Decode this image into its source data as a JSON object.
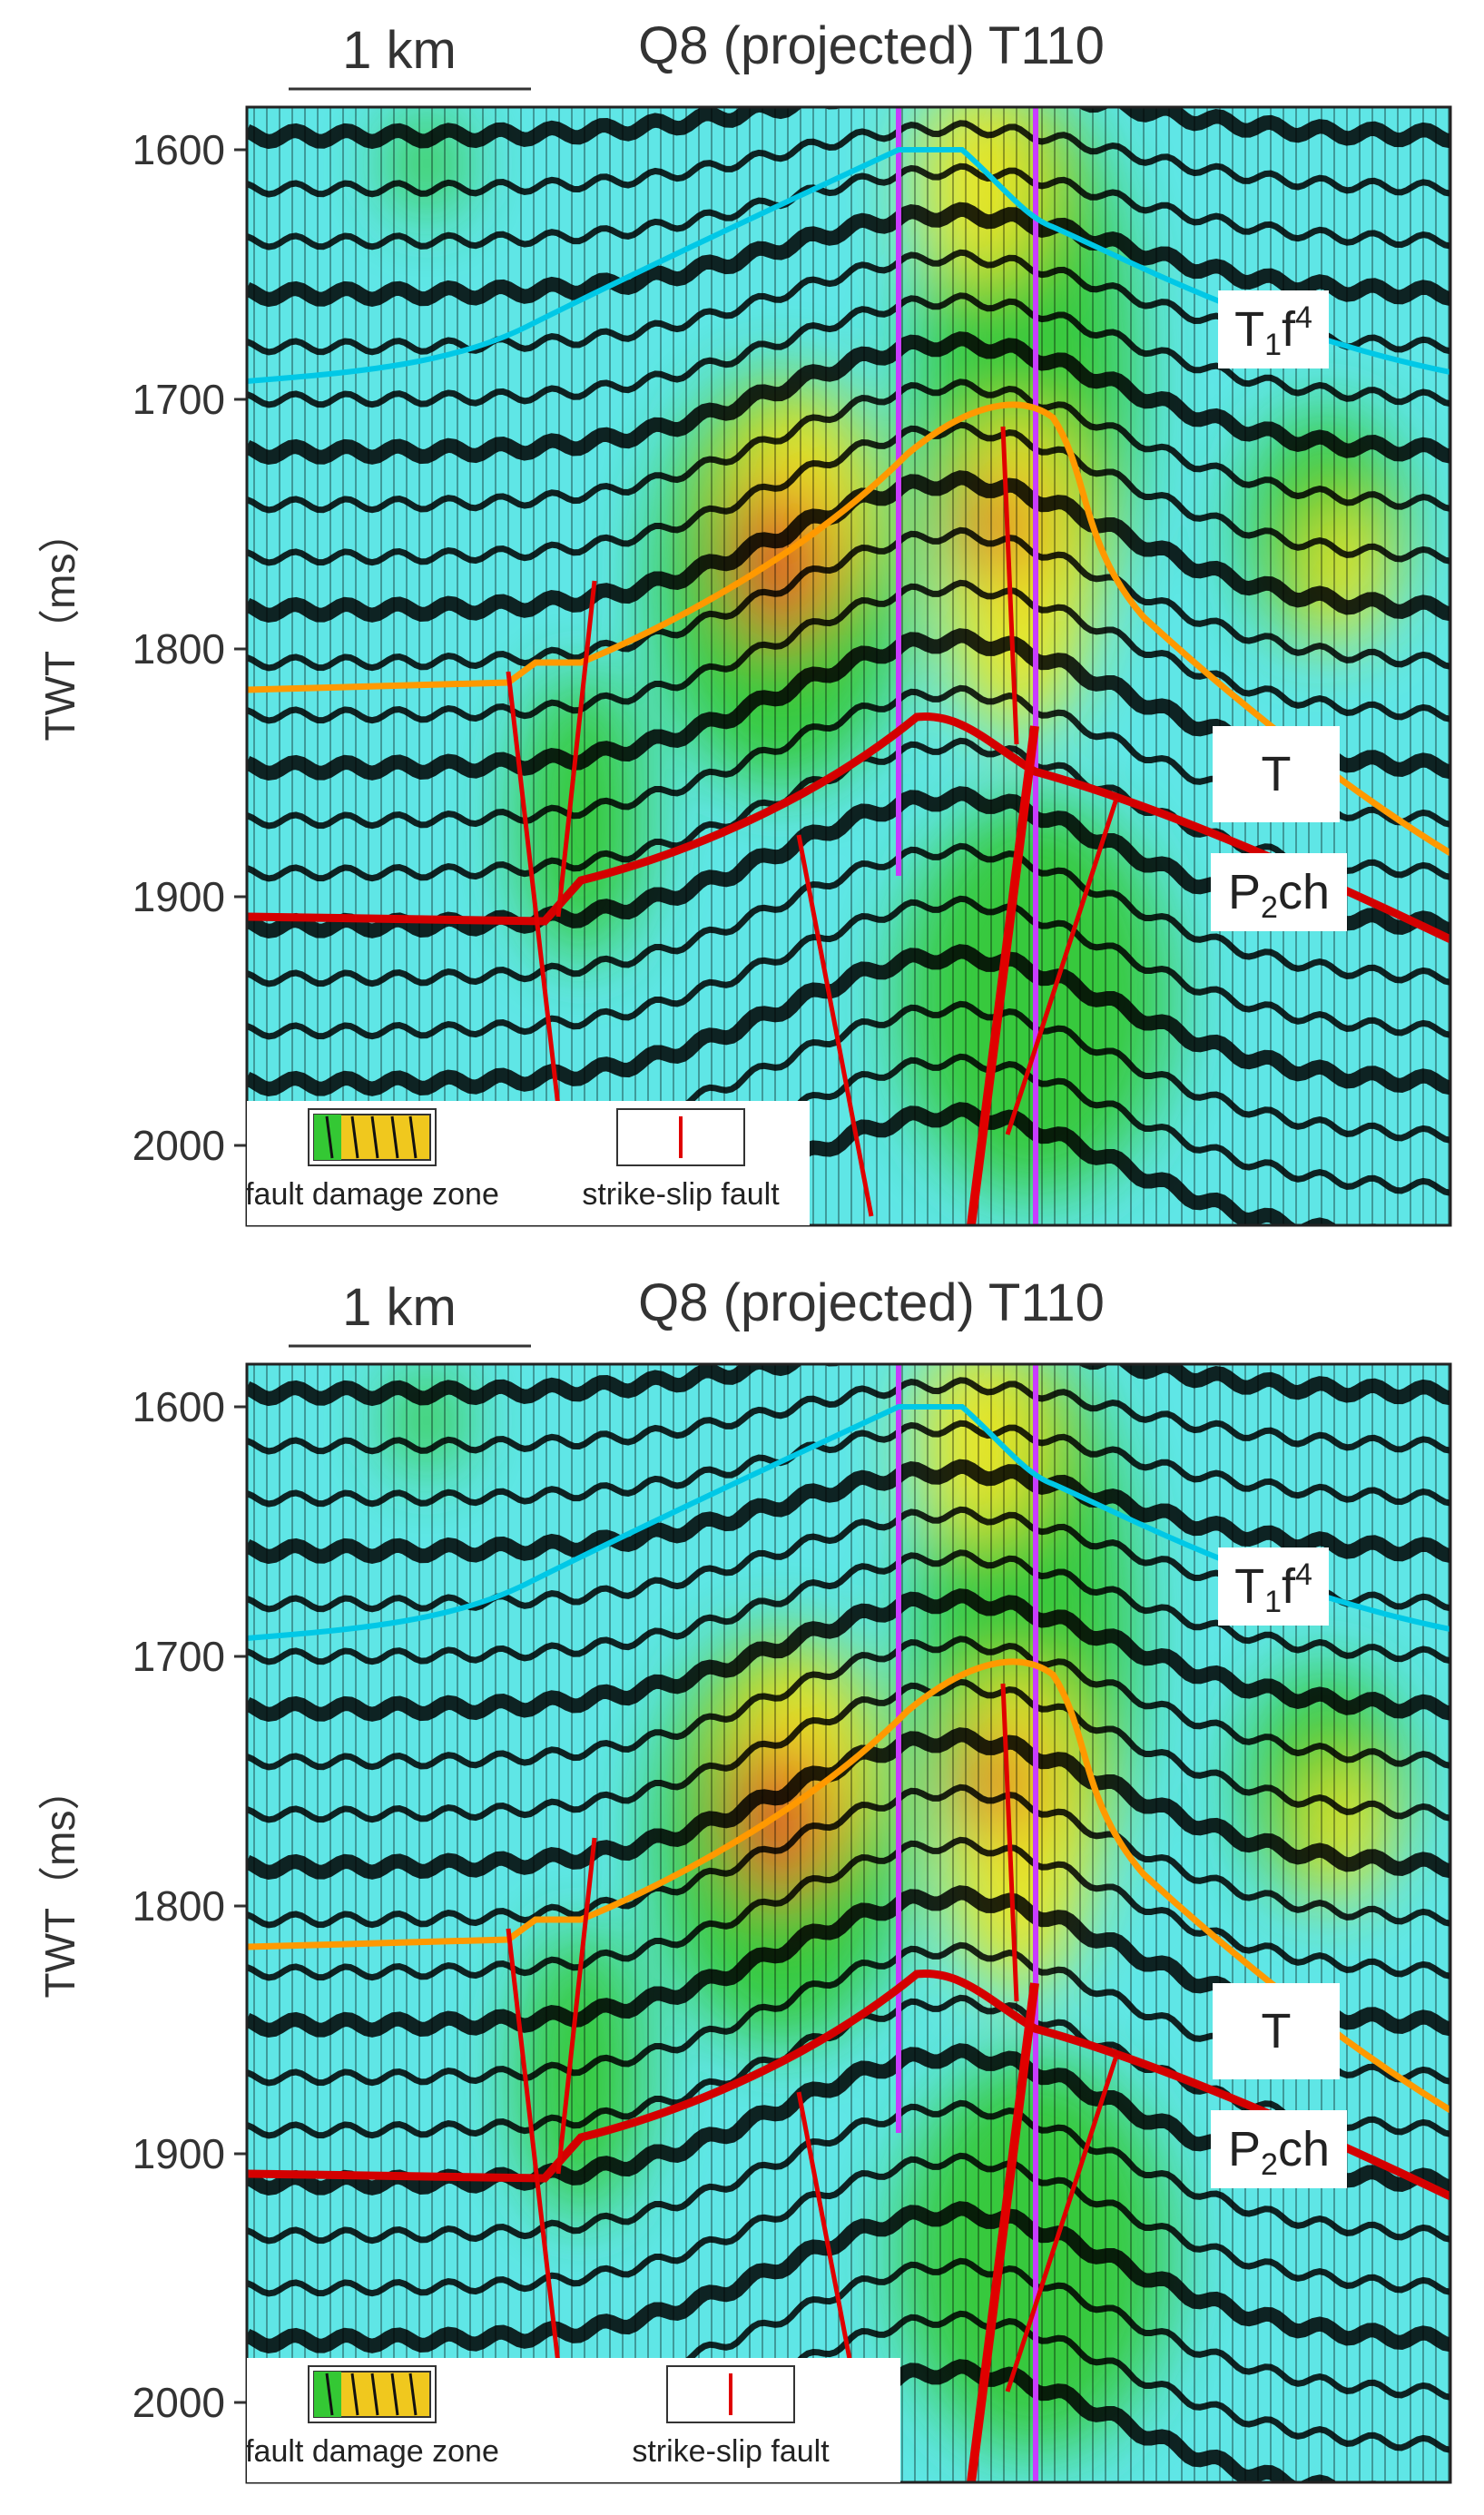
{
  "panels": [
    {
      "id": "top",
      "title": "Q8 (projected) T110",
      "scale_bar_label": "1 km",
      "y_axis_label": "TWT（ms）",
      "y_ticks": [
        "1600",
        "1700",
        "1800",
        "1900",
        "2000"
      ],
      "horizons": [
        {
          "name": "T1f4",
          "base": "T",
          "sub": "1",
          "mid": "f",
          "sup": "4",
          "color": "#00c8e6"
        },
        {
          "name": "T",
          "base": "T",
          "color": "#ff9900"
        },
        {
          "name": "P2ch",
          "base": "P",
          "sub": "2",
          "mid": "ch",
          "color": "#d40000"
        }
      ],
      "legend": [
        {
          "label": "fault damage zone",
          "icon": "fault-damage-zone-swatch-icon"
        },
        {
          "label": "strike-slip fault",
          "icon": "red-fault-line-icon",
          "color": "#e00000"
        }
      ]
    },
    {
      "id": "bottom",
      "title": "Q8 (projected) T110",
      "scale_bar_label": "1 km",
      "y_axis_label": "TWT（ms）",
      "y_ticks": [
        "1600",
        "1700",
        "1800",
        "1900",
        "2000"
      ],
      "horizons": [
        {
          "name": "T1f4",
          "base": "T",
          "sub": "1",
          "mid": "f",
          "sup": "4",
          "color": "#00c8e6"
        },
        {
          "name": "T",
          "base": "T",
          "color": "#ff9900"
        },
        {
          "name": "P2ch",
          "base": "P",
          "sub": "2",
          "mid": "ch",
          "color": "#d40000"
        }
      ],
      "legend": [
        {
          "label": "fault damage zone",
          "icon": "fault-damage-zone-swatch-icon"
        },
        {
          "label": "strike-slip fault",
          "icon": "red-fault-line-icon",
          "color": "#e00000"
        }
      ]
    }
  ],
  "colors": {
    "seismic_background": "#5fe6e6",
    "trough_fill": "#000000",
    "green_attribute": "#34c834",
    "yellow_attribute": "#f0e61e",
    "red_attribute": "#e64614",
    "well_line": "#c83cff"
  }
}
